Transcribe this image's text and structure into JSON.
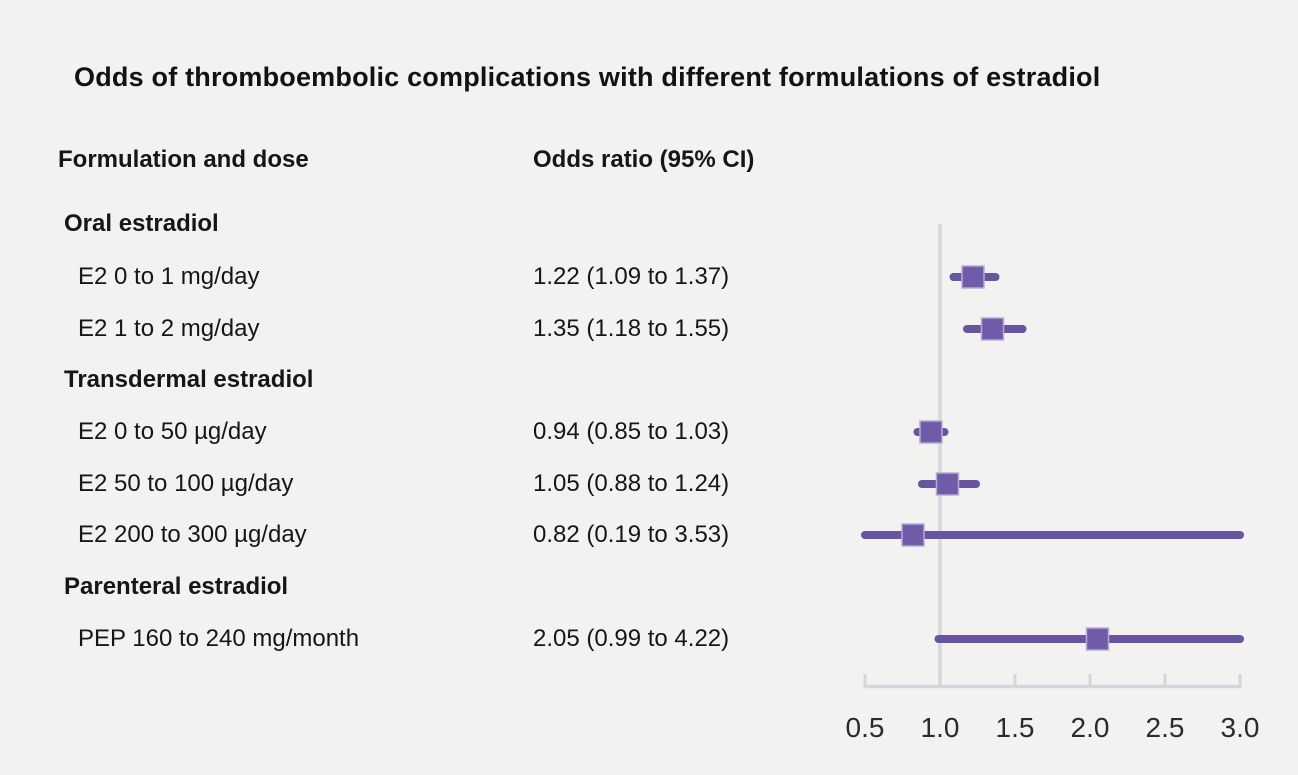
{
  "title": "Odds of thromboembolic complications with different formulations of estradiol",
  "columns": {
    "formulation": "Formulation and dose",
    "odds_ratio": "Odds ratio (95% CI)"
  },
  "rows": [
    {
      "type": "group",
      "label": "Oral estradiol"
    },
    {
      "type": "item",
      "label": "E2 0 to 1 mg/day",
      "value": "1.22 (1.09 to 1.37)",
      "or": 1.22,
      "lo": 1.09,
      "hi": 1.37
    },
    {
      "type": "item",
      "label": "E2 1 to 2 mg/day",
      "value": "1.35 (1.18 to 1.55)",
      "or": 1.35,
      "lo": 1.18,
      "hi": 1.55
    },
    {
      "type": "group",
      "label": "Transdermal estradiol"
    },
    {
      "type": "item",
      "label": "E2 0 to 50 µg/day",
      "value": "0.94 (0.85 to 1.03)",
      "or": 0.94,
      "lo": 0.85,
      "hi": 1.03
    },
    {
      "type": "item",
      "label": "E2 50 to 100 µg/day",
      "value": "1.05 (0.88 to 1.24)",
      "or": 1.05,
      "lo": 0.88,
      "hi": 1.24
    },
    {
      "type": "item",
      "label": "E2 200 to 300 µg/day",
      "value": "0.82 (0.19 to 3.53)",
      "or": 0.82,
      "lo": 0.19,
      "hi": 3.53
    },
    {
      "type": "group",
      "label": "Parenteral estradiol"
    },
    {
      "type": "item",
      "label": "PEP 160 to 240 mg/month",
      "value": "2.05 (0.99 to 4.22)",
      "or": 2.05,
      "lo": 0.99,
      "hi": 4.22
    }
  ],
  "chart_data": {
    "type": "scatter",
    "subtype": "forest-plot",
    "title": "Odds of thromboembolic complications with different formulations of estradiol",
    "xlabel": "Odds ratio (95% CI)",
    "xlim": [
      0.5,
      3.0
    ],
    "ticks": [
      0.5,
      1.0,
      1.5,
      2.0,
      2.5,
      3.0
    ],
    "tick_labels": [
      "0.5",
      "1.0",
      "1.5",
      "2.0",
      "2.5",
      "3.0"
    ],
    "reference_line": 1.0,
    "grid": false,
    "legend": "none",
    "series": [
      {
        "name": "E2 0 to 1 mg/day",
        "or": 1.22,
        "ci": [
          1.09,
          1.37
        ]
      },
      {
        "name": "E2 1 to 2 mg/day",
        "or": 1.35,
        "ci": [
          1.18,
          1.55
        ]
      },
      {
        "name": "E2 0 to 50 µg/day",
        "or": 0.94,
        "ci": [
          0.85,
          1.03
        ]
      },
      {
        "name": "E2 50 to 100 µg/day",
        "or": 1.05,
        "ci": [
          0.88,
          1.24
        ]
      },
      {
        "name": "E2 200 to 300 µg/day",
        "or": 0.82,
        "ci": [
          0.19,
          3.53
        ]
      },
      {
        "name": "PEP 160 to 240 mg/month",
        "or": 2.05,
        "ci": [
          0.99,
          4.22
        ]
      }
    ]
  },
  "colors": {
    "background": "#f2f2f0",
    "text": "#161616",
    "axis": "#d2d7dd",
    "reference_line": "#d4d9df",
    "ci_line": "#69549f",
    "marker_fill": "#6f5ba8",
    "marker_edge": "#b7abd6",
    "tick_label": "#2b2b2b"
  }
}
